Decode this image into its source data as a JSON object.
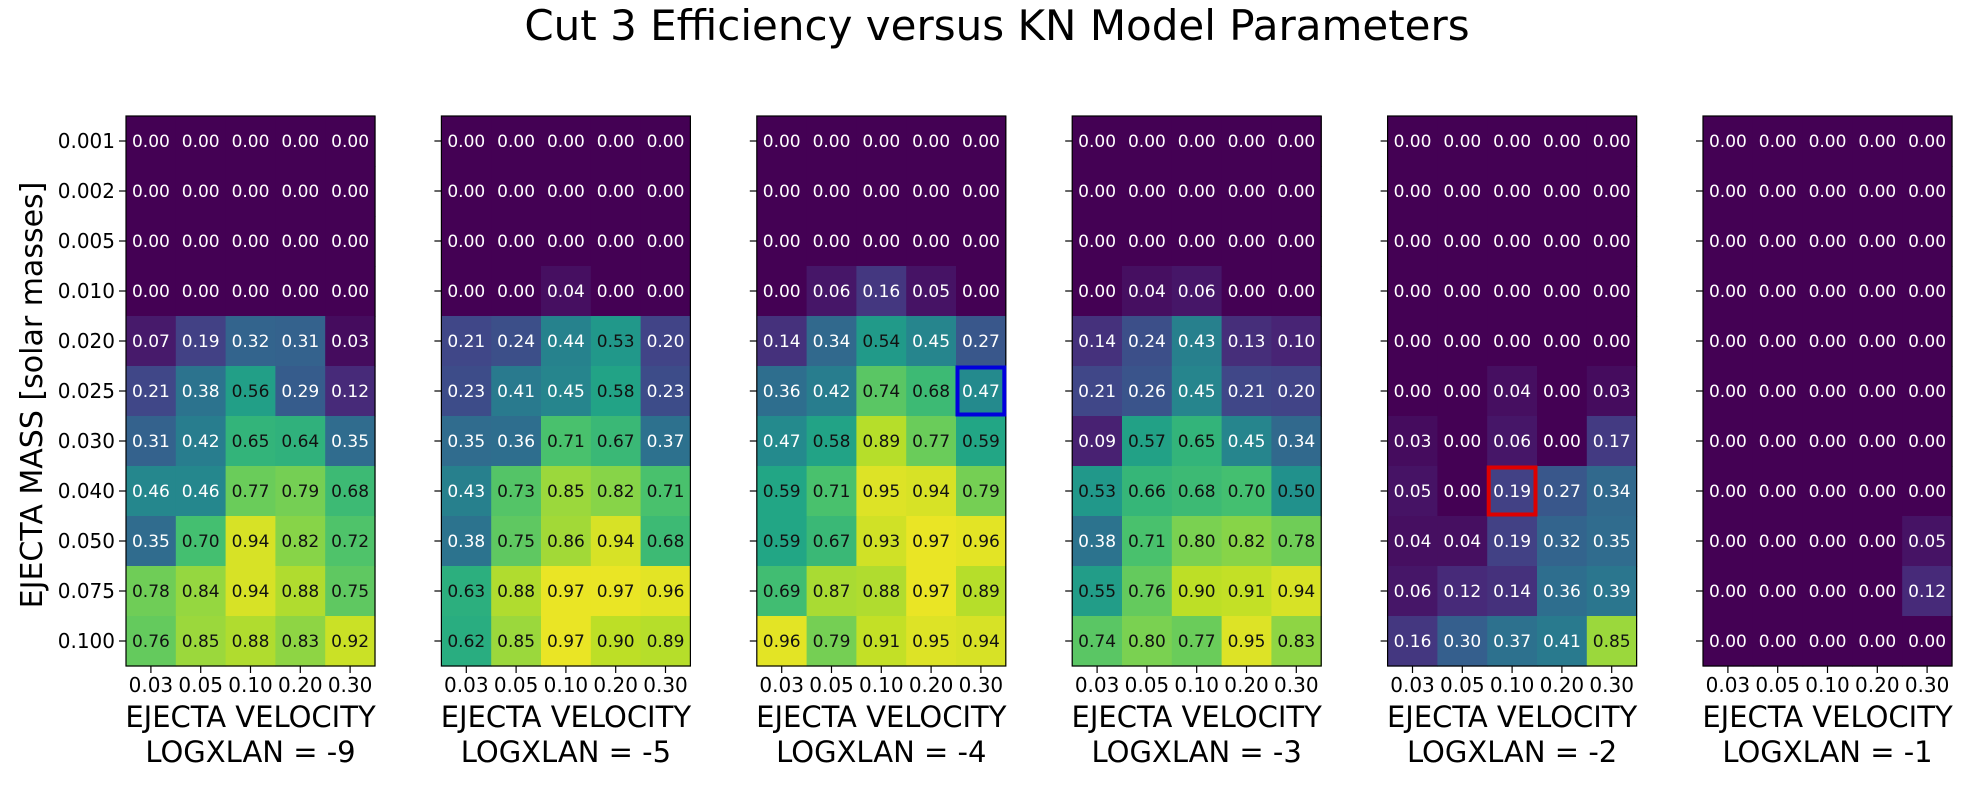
{
  "chart_data": {
    "type": "heatmap",
    "title": "Cut 3 Efficiency versus KN Model Parameters",
    "ylabel": "EJECTA MASS [solar masses]",
    "xlabel": "EJECTA VELOCITY",
    "y_categories": [
      "0.001",
      "0.002",
      "0.005",
      "0.010",
      "0.020",
      "0.025",
      "0.030",
      "0.040",
      "0.050",
      "0.075",
      "0.100"
    ],
    "x_categories": [
      "0.03",
      "0.05",
      "0.10",
      "0.20",
      "0.30"
    ],
    "color_scale": "viridis",
    "value_range": [
      0,
      1
    ],
    "panels": [
      {
        "subtitle": "LOGXLAN = -9",
        "values": [
          [
            0.0,
            0.0,
            0.0,
            0.0,
            0.0
          ],
          [
            0.0,
            0.0,
            0.0,
            0.0,
            0.0
          ],
          [
            0.0,
            0.0,
            0.0,
            0.0,
            0.0
          ],
          [
            0.0,
            0.0,
            0.0,
            0.0,
            0.0
          ],
          [
            0.07,
            0.19,
            0.32,
            0.31,
            0.03
          ],
          [
            0.21,
            0.38,
            0.56,
            0.29,
            0.12
          ],
          [
            0.31,
            0.42,
            0.65,
            0.64,
            0.35
          ],
          [
            0.46,
            0.46,
            0.77,
            0.79,
            0.68
          ],
          [
            0.35,
            0.7,
            0.94,
            0.82,
            0.72
          ],
          [
            0.78,
            0.84,
            0.94,
            0.88,
            0.75
          ],
          [
            0.76,
            0.85,
            0.88,
            0.83,
            0.92
          ]
        ]
      },
      {
        "subtitle": "LOGXLAN = -5",
        "values": [
          [
            0.0,
            0.0,
            0.0,
            0.0,
            0.0
          ],
          [
            0.0,
            0.0,
            0.0,
            0.0,
            0.0
          ],
          [
            0.0,
            0.0,
            0.0,
            0.0,
            0.0
          ],
          [
            0.0,
            0.0,
            0.04,
            0.0,
            0.0
          ],
          [
            0.21,
            0.24,
            0.44,
            0.53,
            0.2
          ],
          [
            0.23,
            0.41,
            0.45,
            0.58,
            0.23
          ],
          [
            0.35,
            0.36,
            0.71,
            0.67,
            0.37
          ],
          [
            0.43,
            0.73,
            0.85,
            0.82,
            0.71
          ],
          [
            0.38,
            0.75,
            0.86,
            0.94,
            0.68
          ],
          [
            0.63,
            0.88,
            0.97,
            0.97,
            0.96
          ],
          [
            0.62,
            0.85,
            0.97,
            0.9,
            0.89
          ]
        ]
      },
      {
        "subtitle": "LOGXLAN = -4",
        "highlight": {
          "row": 5,
          "col": 4,
          "color": "#0000dd"
        },
        "values": [
          [
            0.0,
            0.0,
            0.0,
            0.0,
            0.0
          ],
          [
            0.0,
            0.0,
            0.0,
            0.0,
            0.0
          ],
          [
            0.0,
            0.0,
            0.0,
            0.0,
            0.0
          ],
          [
            0.0,
            0.06,
            0.16,
            0.05,
            0.0
          ],
          [
            0.14,
            0.34,
            0.54,
            0.45,
            0.27
          ],
          [
            0.36,
            0.42,
            0.74,
            0.68,
            0.47
          ],
          [
            0.47,
            0.58,
            0.89,
            0.77,
            0.59
          ],
          [
            0.59,
            0.71,
            0.95,
            0.94,
            0.79
          ],
          [
            0.59,
            0.67,
            0.93,
            0.97,
            0.96
          ],
          [
            0.69,
            0.87,
            0.88,
            0.97,
            0.89
          ],
          [
            0.96,
            0.79,
            0.91,
            0.95,
            0.94
          ]
        ]
      },
      {
        "subtitle": "LOGXLAN = -3",
        "values": [
          [
            0.0,
            0.0,
            0.0,
            0.0,
            0.0
          ],
          [
            0.0,
            0.0,
            0.0,
            0.0,
            0.0
          ],
          [
            0.0,
            0.0,
            0.0,
            0.0,
            0.0
          ],
          [
            0.0,
            0.04,
            0.06,
            0.0,
            0.0
          ],
          [
            0.14,
            0.24,
            0.43,
            0.13,
            0.1
          ],
          [
            0.21,
            0.26,
            0.45,
            0.21,
            0.2
          ],
          [
            0.09,
            0.57,
            0.65,
            0.45,
            0.34
          ],
          [
            0.53,
            0.66,
            0.68,
            0.7,
            0.5
          ],
          [
            0.38,
            0.71,
            0.8,
            0.82,
            0.78
          ],
          [
            0.55,
            0.76,
            0.9,
            0.91,
            0.94
          ],
          [
            0.74,
            0.8,
            0.77,
            0.95,
            0.83
          ]
        ]
      },
      {
        "subtitle": "LOGXLAN = -2",
        "highlight": {
          "row": 7,
          "col": 2,
          "color": "#dd0000"
        },
        "values": [
          [
            0.0,
            0.0,
            0.0,
            0.0,
            0.0
          ],
          [
            0.0,
            0.0,
            0.0,
            0.0,
            0.0
          ],
          [
            0.0,
            0.0,
            0.0,
            0.0,
            0.0
          ],
          [
            0.0,
            0.0,
            0.0,
            0.0,
            0.0
          ],
          [
            0.0,
            0.0,
            0.0,
            0.0,
            0.0
          ],
          [
            0.0,
            0.0,
            0.04,
            0.0,
            0.03
          ],
          [
            0.03,
            0.0,
            0.06,
            0.0,
            0.17
          ],
          [
            0.05,
            0.0,
            0.19,
            0.27,
            0.34
          ],
          [
            0.04,
            0.04,
            0.19,
            0.32,
            0.35
          ],
          [
            0.06,
            0.12,
            0.14,
            0.36,
            0.39
          ],
          [
            0.16,
            0.3,
            0.37,
            0.41,
            0.85
          ]
        ]
      },
      {
        "subtitle": "LOGXLAN = -1",
        "values": [
          [
            0.0,
            0.0,
            0.0,
            0.0,
            0.0
          ],
          [
            0.0,
            0.0,
            0.0,
            0.0,
            0.0
          ],
          [
            0.0,
            0.0,
            0.0,
            0.0,
            0.0
          ],
          [
            0.0,
            0.0,
            0.0,
            0.0,
            0.0
          ],
          [
            0.0,
            0.0,
            0.0,
            0.0,
            0.0
          ],
          [
            0.0,
            0.0,
            0.0,
            0.0,
            0.0
          ],
          [
            0.0,
            0.0,
            0.0,
            0.0,
            0.0
          ],
          [
            0.0,
            0.0,
            0.0,
            0.0,
            0.0
          ],
          [
            0.0,
            0.0,
            0.0,
            0.0,
            0.05
          ],
          [
            0.0,
            0.0,
            0.0,
            0.0,
            0.12
          ],
          [
            0.0,
            0.0,
            0.0,
            0.0,
            0.0
          ]
        ]
      }
    ]
  }
}
